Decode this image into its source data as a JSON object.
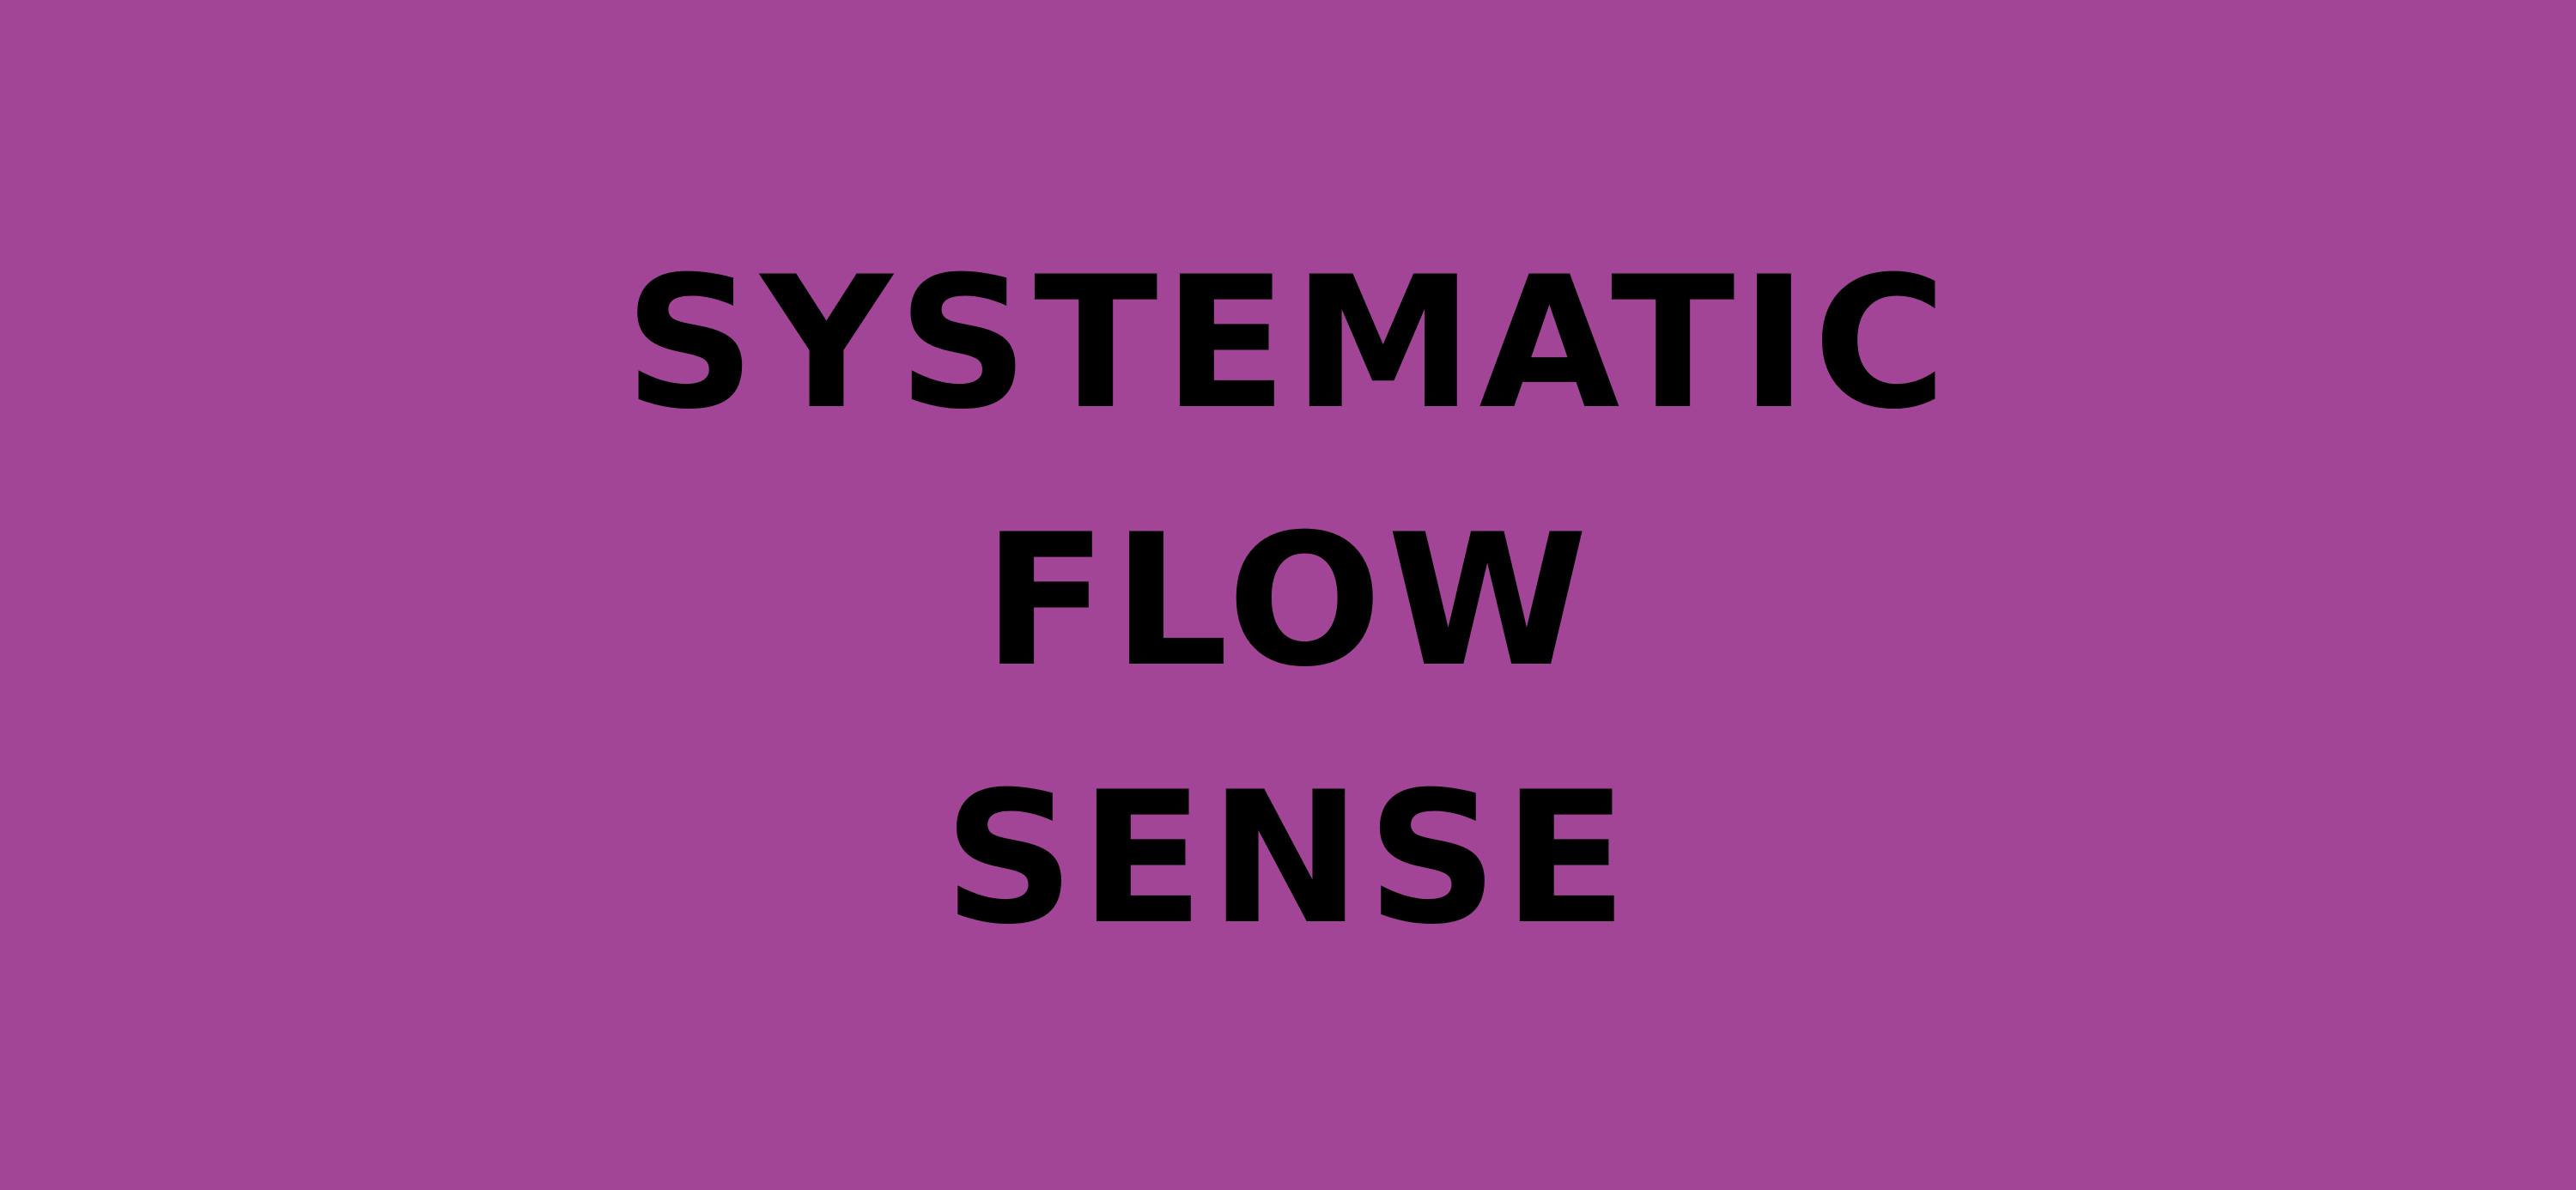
{
  "colors": {
    "background": "#a24597",
    "text": "#000000"
  },
  "title": {
    "lines": [
      "SYSTEMATIC",
      "FLOW",
      "SENSE"
    ]
  }
}
